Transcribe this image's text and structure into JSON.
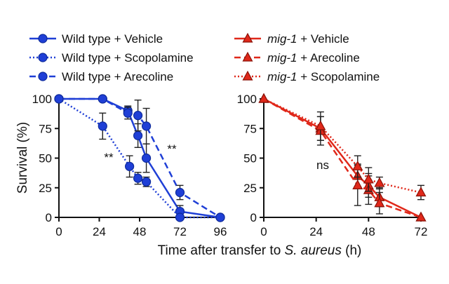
{
  "legend_left": [
    {
      "label": "Wild type + Vehicle",
      "style": "solid"
    },
    {
      "label": "Wild type + Scopolamine",
      "style": "dotted"
    },
    {
      "label": "Wild type + Arecoline",
      "style": "dashed"
    }
  ],
  "legend_right": [
    {
      "label_italic": "mig-1",
      "label_rest": " + Vehicle",
      "style": "solid"
    },
    {
      "label_italic": "mig-1",
      "label_rest": " + Arecoline",
      "style": "dashed"
    },
    {
      "label_italic": "mig-1",
      "label_rest": " + Scopolamine",
      "style": "dotted"
    }
  ],
  "axes": {
    "ylabel": "Survival (%)",
    "xlabel_prefix": "Time after transfer to ",
    "xlabel_italic": "S. aureus",
    "xlabel_suffix": " (h)"
  },
  "annotations": {
    "left_star_1": "**",
    "left_star_2": "**",
    "right_ns": "ns"
  },
  "colors": {
    "wild_type": "#1f3fd6",
    "mig1": "#e0281a"
  },
  "chart_data": [
    {
      "type": "line",
      "panel": "left",
      "marker": "circle",
      "xlim": [
        0,
        96
      ],
      "ylim": [
        0,
        100
      ],
      "xticks": [
        0,
        24,
        48,
        72,
        96
      ],
      "yticks": [
        0,
        25,
        50,
        75,
        100
      ],
      "ylabel": "Survival (%)",
      "series": [
        {
          "name": "Wild type + Vehicle",
          "style": "solid",
          "x": [
            0,
            26,
            41,
            47,
            52,
            72,
            96
          ],
          "y": [
            100,
            100,
            90,
            69,
            50,
            5,
            0
          ],
          "err": [
            0,
            0,
            4,
            10,
            12,
            5,
            0
          ]
        },
        {
          "name": "Wild type + Scopolamine",
          "style": "dotted",
          "x": [
            0,
            26,
            42,
            47,
            52,
            72,
            96
          ],
          "y": [
            100,
            77,
            43,
            33,
            30,
            0,
            0
          ],
          "err": [
            0,
            11,
            9,
            5,
            4,
            0,
            0
          ]
        },
        {
          "name": "Wild type + Arecoline",
          "style": "dashed",
          "x": [
            0,
            26,
            41,
            47,
            52,
            72,
            96
          ],
          "y": [
            100,
            100,
            88,
            86,
            77,
            21,
            0
          ],
          "err": [
            0,
            0,
            5,
            13,
            15,
            6,
            0
          ]
        }
      ],
      "annotations": [
        "**",
        "**"
      ]
    },
    {
      "type": "line",
      "panel": "right",
      "marker": "triangle",
      "xlim": [
        0,
        72
      ],
      "ylim": [
        0,
        100
      ],
      "xticks": [
        0,
        24,
        48,
        72
      ],
      "yticks": [
        0,
        25,
        50,
        75,
        100
      ],
      "series": [
        {
          "name": "mig-1 + Vehicle",
          "style": "solid",
          "x": [
            0,
            26,
            43,
            48,
            53,
            72
          ],
          "y": [
            100,
            75,
            35,
            27,
            17,
            0
          ],
          "err": [
            0,
            10,
            10,
            10,
            8,
            0
          ]
        },
        {
          "name": "mig-1 + Arecoline",
          "style": "dashed",
          "x": [
            0,
            26,
            43,
            48,
            53,
            72
          ],
          "y": [
            100,
            73,
            27,
            23,
            12,
            0
          ],
          "err": [
            0,
            12,
            17,
            12,
            9,
            0
          ]
        },
        {
          "name": "mig-1 + Scopolamine",
          "style": "dotted",
          "x": [
            0,
            26,
            43,
            48,
            53,
            72
          ],
          "y": [
            100,
            77,
            43,
            32,
            29,
            21
          ],
          "err": [
            0,
            12,
            9,
            10,
            5,
            6
          ]
        }
      ],
      "annotations": [
        "ns"
      ]
    }
  ]
}
